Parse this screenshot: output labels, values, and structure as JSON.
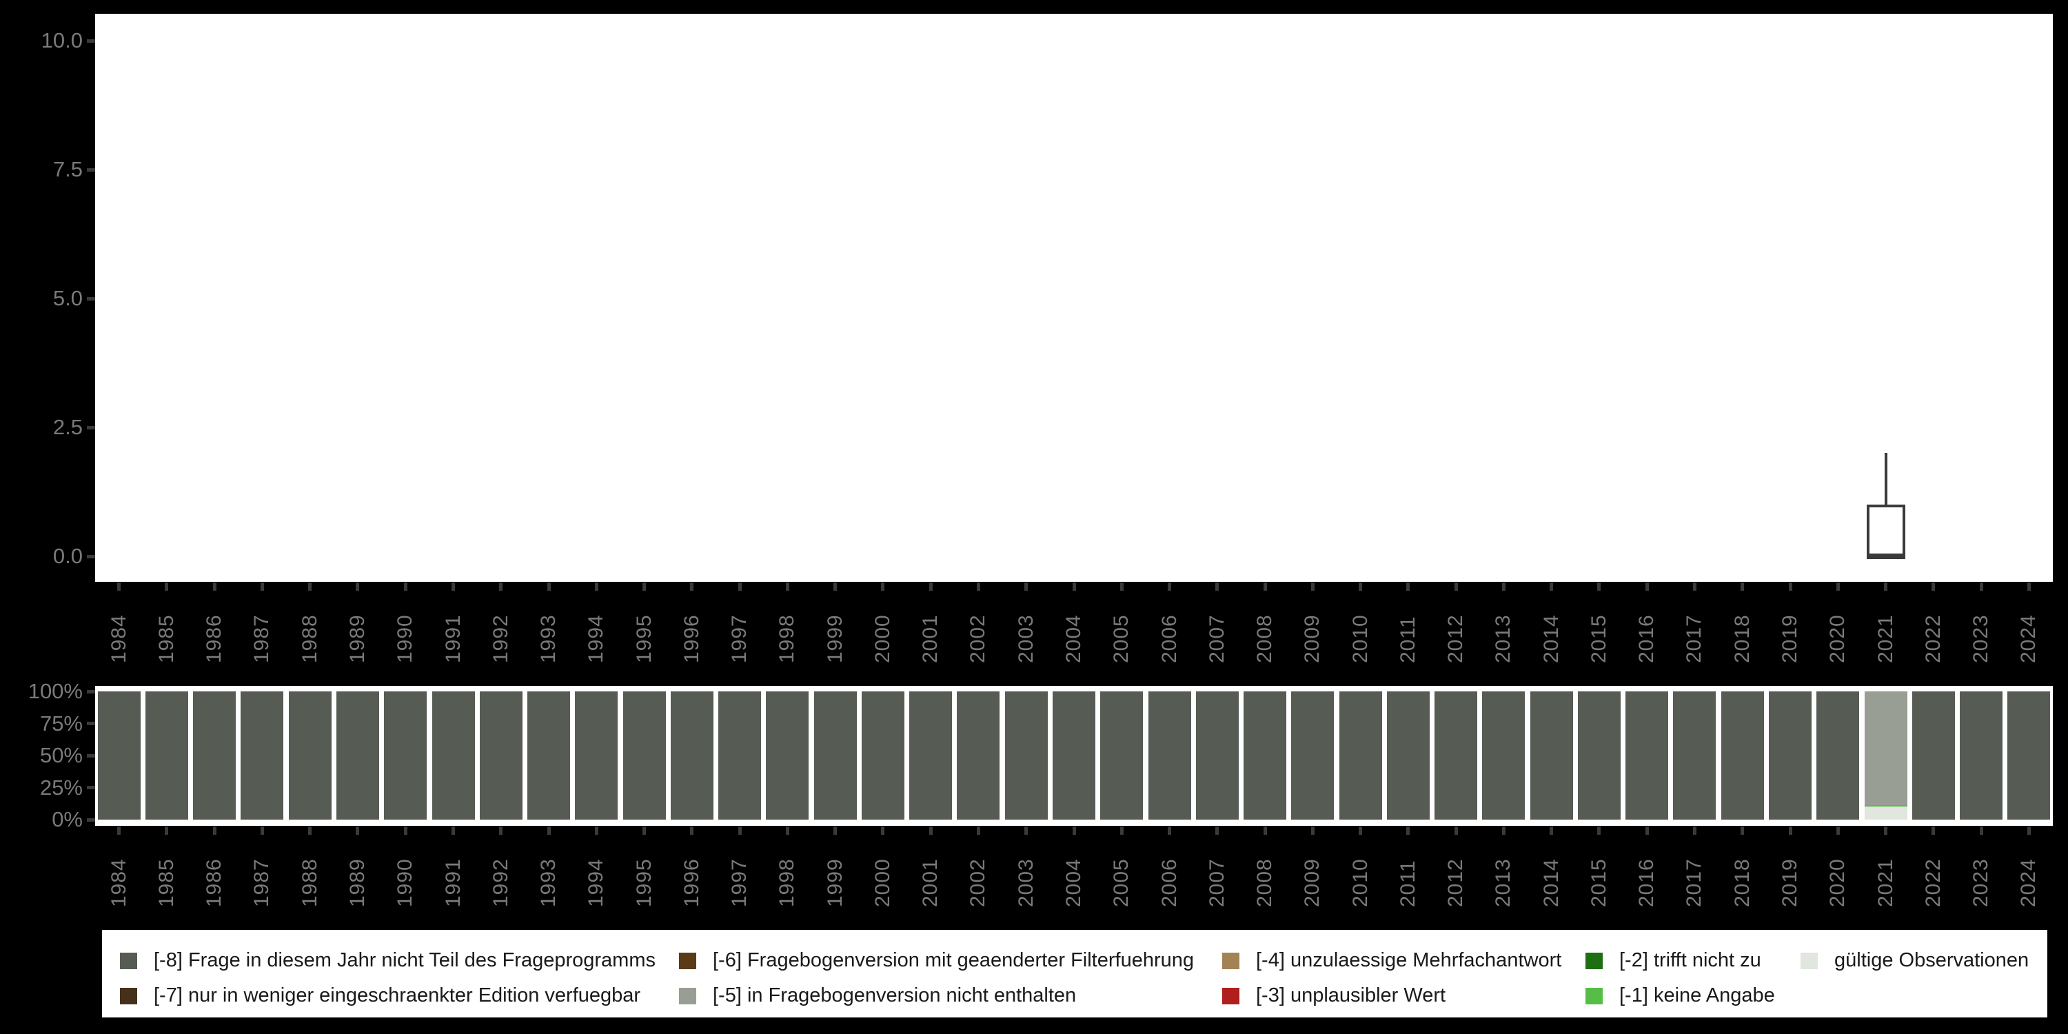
{
  "colors": {
    "background": "#000000",
    "plot_background": "#FFFFFF",
    "axis_tick": "#3A3A3A",
    "axis_label": "#7A7A7A",
    "box_outline": "#3A3A3A",
    "legend_text": "#1A1A1A",
    "codes": {
      "-8": "#565C53",
      "-7": "#47301A",
      "-6": "#5A3A17",
      "-5": "#999E95",
      "-4": "#A38353",
      "-3": "#B01E1E",
      "-2": "#1E6E12",
      "-1": "#56BE46",
      "valid": "#E1E6DF"
    }
  },
  "years": [
    "1984",
    "1985",
    "1986",
    "1987",
    "1988",
    "1989",
    "1990",
    "1991",
    "1992",
    "1993",
    "1994",
    "1995",
    "1996",
    "1997",
    "1998",
    "1999",
    "2000",
    "2001",
    "2002",
    "2003",
    "2004",
    "2005",
    "2006",
    "2007",
    "2008",
    "2009",
    "2010",
    "2011",
    "2012",
    "2013",
    "2014",
    "2015",
    "2016",
    "2017",
    "2018",
    "2019",
    "2020",
    "2021",
    "2022",
    "2023",
    "2024"
  ],
  "chart_data": [
    {
      "type": "boxplot",
      "title": "",
      "xlabel": "",
      "ylabel": "",
      "ylim": [
        0,
        10
      ],
      "grid": false,
      "y_ticks": [
        {
          "label": "0.0",
          "value": 0
        },
        {
          "label": "2.5",
          "value": 2.5
        },
        {
          "label": "5.0",
          "value": 5
        },
        {
          "label": "7.5",
          "value": 7.5
        },
        {
          "label": "10.0",
          "value": 10
        }
      ],
      "x_categories_ref": "years",
      "series": [
        {
          "x": "2021",
          "whisker_low": 0,
          "q1": 0,
          "median": 0,
          "q3": 1,
          "whisker_high": 2
        }
      ]
    },
    {
      "type": "bar",
      "stacked": true,
      "percent": true,
      "title": "",
      "xlabel": "",
      "ylabel": "",
      "ylim": [
        0,
        100
      ],
      "y_ticks": [
        {
          "label": "0%",
          "value": 0
        },
        {
          "label": "25%",
          "value": 25
        },
        {
          "label": "50%",
          "value": 50
        },
        {
          "label": "75%",
          "value": 75
        },
        {
          "label": "100%",
          "value": 100
        }
      ],
      "x_categories_ref": "years",
      "bars": [
        {
          "year": "1984",
          "segments": [
            {
              "code": "-8",
              "pct": 100
            }
          ]
        },
        {
          "year": "1985",
          "segments": [
            {
              "code": "-8",
              "pct": 100
            }
          ]
        },
        {
          "year": "1986",
          "segments": [
            {
              "code": "-8",
              "pct": 100
            }
          ]
        },
        {
          "year": "1987",
          "segments": [
            {
              "code": "-8",
              "pct": 100
            }
          ]
        },
        {
          "year": "1988",
          "segments": [
            {
              "code": "-8",
              "pct": 100
            }
          ]
        },
        {
          "year": "1989",
          "segments": [
            {
              "code": "-8",
              "pct": 100
            }
          ]
        },
        {
          "year": "1990",
          "segments": [
            {
              "code": "-8",
              "pct": 100
            }
          ]
        },
        {
          "year": "1991",
          "segments": [
            {
              "code": "-8",
              "pct": 100
            }
          ]
        },
        {
          "year": "1992",
          "segments": [
            {
              "code": "-8",
              "pct": 100
            }
          ]
        },
        {
          "year": "1993",
          "segments": [
            {
              "code": "-8",
              "pct": 100
            }
          ]
        },
        {
          "year": "1994",
          "segments": [
            {
              "code": "-8",
              "pct": 100
            }
          ]
        },
        {
          "year": "1995",
          "segments": [
            {
              "code": "-8",
              "pct": 100
            }
          ]
        },
        {
          "year": "1996",
          "segments": [
            {
              "code": "-8",
              "pct": 100
            }
          ]
        },
        {
          "year": "1997",
          "segments": [
            {
              "code": "-8",
              "pct": 100
            }
          ]
        },
        {
          "year": "1998",
          "segments": [
            {
              "code": "-8",
              "pct": 100
            }
          ]
        },
        {
          "year": "1999",
          "segments": [
            {
              "code": "-8",
              "pct": 100
            }
          ]
        },
        {
          "year": "2000",
          "segments": [
            {
              "code": "-8",
              "pct": 100
            }
          ]
        },
        {
          "year": "2001",
          "segments": [
            {
              "code": "-8",
              "pct": 100
            }
          ]
        },
        {
          "year": "2002",
          "segments": [
            {
              "code": "-8",
              "pct": 100
            }
          ]
        },
        {
          "year": "2003",
          "segments": [
            {
              "code": "-8",
              "pct": 100
            }
          ]
        },
        {
          "year": "2004",
          "segments": [
            {
              "code": "-8",
              "pct": 100
            }
          ]
        },
        {
          "year": "2005",
          "segments": [
            {
              "code": "-8",
              "pct": 100
            }
          ]
        },
        {
          "year": "2006",
          "segments": [
            {
              "code": "-8",
              "pct": 100
            }
          ]
        },
        {
          "year": "2007",
          "segments": [
            {
              "code": "-8",
              "pct": 100
            }
          ]
        },
        {
          "year": "2008",
          "segments": [
            {
              "code": "-8",
              "pct": 100
            }
          ]
        },
        {
          "year": "2009",
          "segments": [
            {
              "code": "-8",
              "pct": 100
            }
          ]
        },
        {
          "year": "2010",
          "segments": [
            {
              "code": "-8",
              "pct": 100
            }
          ]
        },
        {
          "year": "2011",
          "segments": [
            {
              "code": "-8",
              "pct": 100
            }
          ]
        },
        {
          "year": "2012",
          "segments": [
            {
              "code": "-8",
              "pct": 100
            }
          ]
        },
        {
          "year": "2013",
          "segments": [
            {
              "code": "-8",
              "pct": 100
            }
          ]
        },
        {
          "year": "2014",
          "segments": [
            {
              "code": "-8",
              "pct": 100
            }
          ]
        },
        {
          "year": "2015",
          "segments": [
            {
              "code": "-8",
              "pct": 100
            }
          ]
        },
        {
          "year": "2016",
          "segments": [
            {
              "code": "-8",
              "pct": 100
            }
          ]
        },
        {
          "year": "2017",
          "segments": [
            {
              "code": "-8",
              "pct": 100
            }
          ]
        },
        {
          "year": "2018",
          "segments": [
            {
              "code": "-8",
              "pct": 100
            }
          ]
        },
        {
          "year": "2019",
          "segments": [
            {
              "code": "-8",
              "pct": 100
            }
          ]
        },
        {
          "year": "2020",
          "segments": [
            {
              "code": "-8",
              "pct": 100
            }
          ]
        },
        {
          "year": "2021",
          "segments": [
            {
              "code": "-5",
              "pct": 88.7
            },
            {
              "code": "-1",
              "pct": 1.1
            },
            {
              "code": "valid",
              "pct": 10.2
            }
          ]
        },
        {
          "year": "2022",
          "segments": [
            {
              "code": "-8",
              "pct": 100
            }
          ]
        },
        {
          "year": "2023",
          "segments": [
            {
              "code": "-8",
              "pct": 100
            }
          ]
        },
        {
          "year": "2024",
          "segments": [
            {
              "code": "-8",
              "pct": 100
            }
          ]
        }
      ]
    }
  ],
  "legend": {
    "columns": [
      {
        "items": [
          {
            "code": "-8",
            "label": "[-8] Frage in diesem Jahr nicht Teil des Frageprogramms"
          },
          {
            "code": "-7",
            "label": "[-7] nur in weniger eingeschraenkter Edition verfuegbar"
          }
        ]
      },
      {
        "items": [
          {
            "code": "-6",
            "label": "[-6] Fragebogenversion mit geaenderter Filterfuehrung"
          },
          {
            "code": "-5",
            "label": "[-5] in Fragebogenversion nicht enthalten"
          }
        ]
      },
      {
        "items": [
          {
            "code": "-4",
            "label": "[-4] unzulaessige Mehrfachantwort"
          },
          {
            "code": "-3",
            "label": "[-3] unplausibler Wert"
          }
        ]
      },
      {
        "items": [
          {
            "code": "-2",
            "label": "[-2] trifft nicht zu"
          },
          {
            "code": "-1",
            "label": "[-1] keine Angabe"
          }
        ]
      },
      {
        "items": [
          {
            "code": "valid",
            "label": "gültige Observationen"
          }
        ]
      }
    ]
  }
}
